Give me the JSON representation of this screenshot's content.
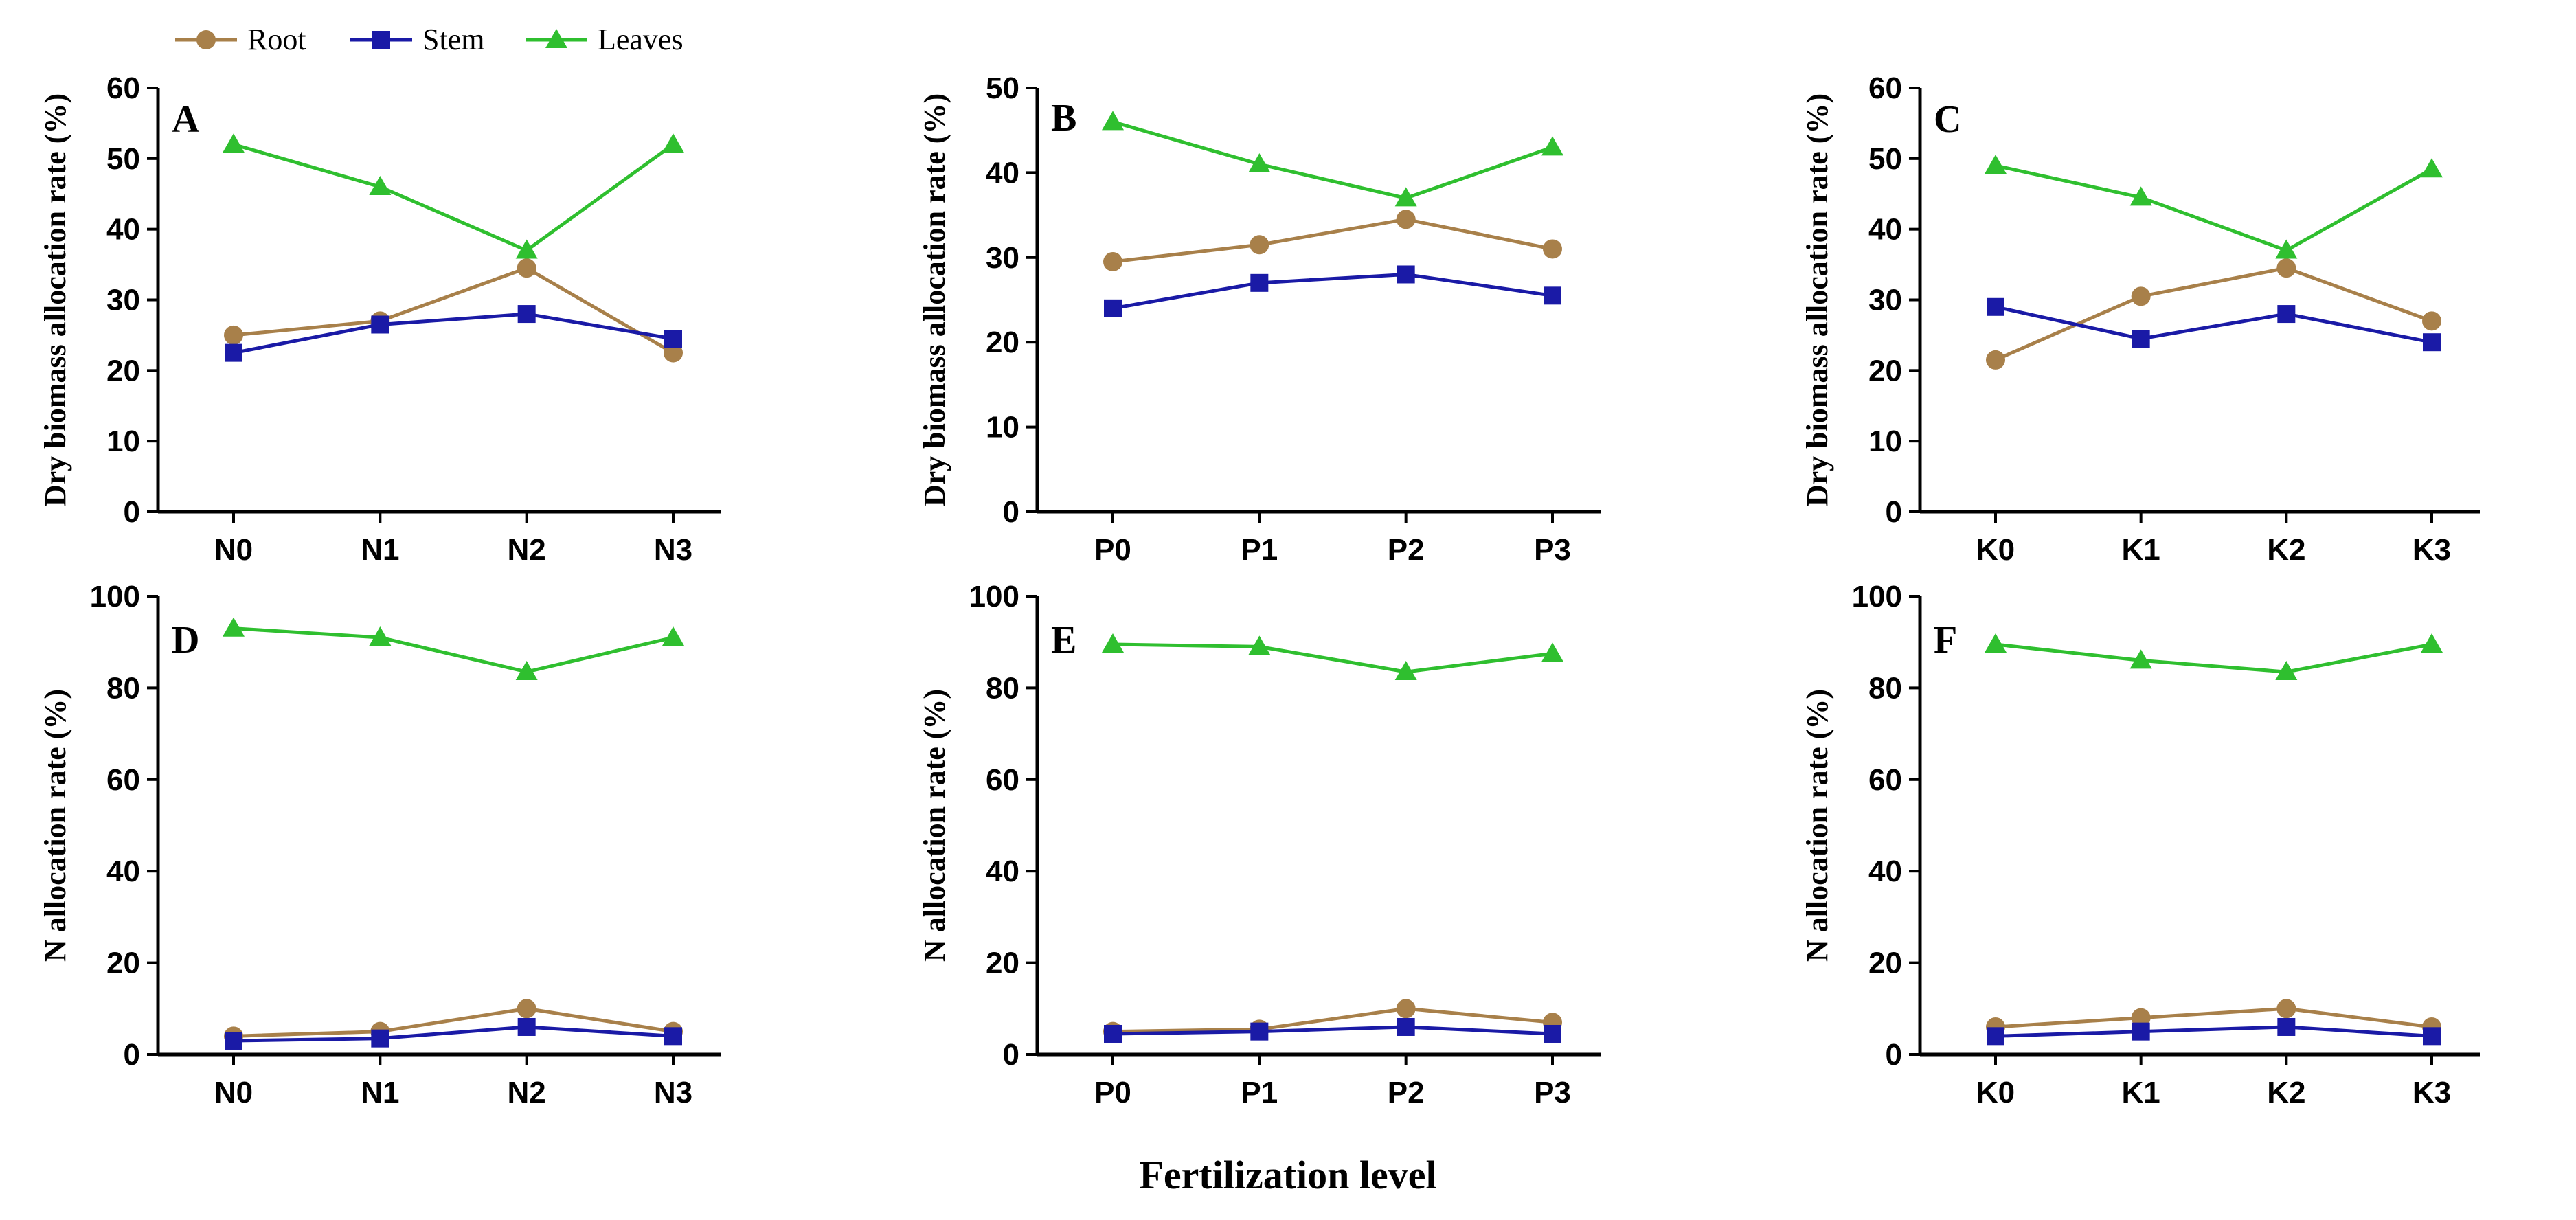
{
  "figure": {
    "xlabel": "Fertilization level",
    "colors": {
      "Root": "#a8804a",
      "Stem": "#1a1aa6",
      "Leaves": "#2fbf2f"
    },
    "legend": [
      {
        "name": "Root",
        "marker": "circle"
      },
      {
        "name": "Stem",
        "marker": "square"
      },
      {
        "name": "Leaves",
        "marker": "triangle"
      }
    ]
  },
  "chart_data": [
    {
      "panel": "A",
      "type": "line",
      "categories": [
        "N0",
        "N1",
        "N2",
        "N3"
      ],
      "ylabel": "Dry biomass allocation rate (%)",
      "ylim": [
        0,
        60
      ],
      "yticks": [
        0,
        10,
        20,
        30,
        40,
        50,
        60
      ],
      "series": [
        {
          "name": "Root",
          "values": [
            25,
            27,
            34.5,
            22.5
          ]
        },
        {
          "name": "Stem",
          "values": [
            22.5,
            26.5,
            28,
            24.5
          ]
        },
        {
          "name": "Leaves",
          "values": [
            52,
            46,
            37,
            52
          ]
        }
      ]
    },
    {
      "panel": "B",
      "type": "line",
      "categories": [
        "P0",
        "P1",
        "P2",
        "P3"
      ],
      "ylabel": "Dry biomass allocation rate (%)",
      "ylim": [
        0,
        50
      ],
      "yticks": [
        0,
        10,
        20,
        30,
        40,
        50
      ],
      "series": [
        {
          "name": "Root",
          "values": [
            29.5,
            31.5,
            34.5,
            31
          ]
        },
        {
          "name": "Stem",
          "values": [
            24,
            27,
            28,
            25.5
          ]
        },
        {
          "name": "Leaves",
          "values": [
            46,
            41,
            37,
            43
          ]
        }
      ]
    },
    {
      "panel": "C",
      "type": "line",
      "categories": [
        "K0",
        "K1",
        "K2",
        "K3"
      ],
      "ylabel": "Dry biomass allocation rate (%)",
      "ylim": [
        0,
        60
      ],
      "yticks": [
        0,
        10,
        20,
        30,
        40,
        50,
        60
      ],
      "series": [
        {
          "name": "Root",
          "values": [
            21.5,
            30.5,
            34.5,
            27
          ]
        },
        {
          "name": "Stem",
          "values": [
            29,
            24.5,
            28,
            24
          ]
        },
        {
          "name": "Leaves",
          "values": [
            49,
            44.5,
            37,
            48.5
          ]
        }
      ]
    },
    {
      "panel": "D",
      "type": "line",
      "categories": [
        "N0",
        "N1",
        "N2",
        "N3"
      ],
      "ylabel": "N allocation rate (%)",
      "ylim": [
        0,
        100
      ],
      "yticks": [
        0,
        20,
        40,
        60,
        80,
        100
      ],
      "series": [
        {
          "name": "Root",
          "values": [
            4,
            5,
            10,
            5
          ]
        },
        {
          "name": "Stem",
          "values": [
            3,
            3.5,
            6,
            4
          ]
        },
        {
          "name": "Leaves",
          "values": [
            93,
            91,
            83.5,
            91
          ]
        }
      ]
    },
    {
      "panel": "E",
      "type": "line",
      "categories": [
        "P0",
        "P1",
        "P2",
        "P3"
      ],
      "ylabel": "N allocation rate (%)",
      "ylim": [
        0,
        100
      ],
      "yticks": [
        0,
        20,
        40,
        60,
        80,
        100
      ],
      "series": [
        {
          "name": "Root",
          "values": [
            5,
            5.5,
            10,
            7
          ]
        },
        {
          "name": "Stem",
          "values": [
            4.5,
            5,
            6,
            4.5
          ]
        },
        {
          "name": "Leaves",
          "values": [
            89.5,
            89,
            83.5,
            87.5
          ]
        }
      ]
    },
    {
      "panel": "F",
      "type": "line",
      "categories": [
        "K0",
        "K1",
        "K2",
        "K3"
      ],
      "ylabel": "N allocation rate (%)",
      "ylim": [
        0,
        100
      ],
      "yticks": [
        0,
        20,
        40,
        60,
        80,
        100
      ],
      "series": [
        {
          "name": "Root",
          "values": [
            6,
            8,
            10,
            6
          ]
        },
        {
          "name": "Stem",
          "values": [
            4,
            5,
            6,
            4
          ]
        },
        {
          "name": "Leaves",
          "values": [
            89.5,
            86,
            83.5,
            89.5
          ]
        }
      ]
    }
  ]
}
